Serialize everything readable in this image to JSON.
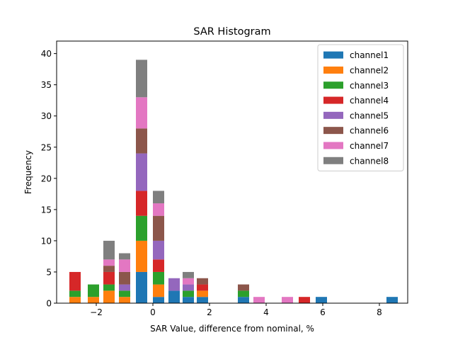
{
  "chart_data": {
    "type": "bar",
    "stacked": true,
    "title": "SAR Histogram",
    "xlabel": "SAR Value, difference from nominal, %",
    "ylabel": "Frequency",
    "xlim": [
      -3.4,
      9.0
    ],
    "ylim": [
      0,
      42
    ],
    "xticks": [
      -2,
      0,
      2,
      4,
      6,
      8
    ],
    "xtick_labels": [
      "−2",
      "0",
      "2",
      "4",
      "6",
      "8"
    ],
    "yticks": [
      0,
      5,
      10,
      15,
      20,
      25,
      30,
      35,
      40
    ],
    "ytick_labels": [
      "0",
      "5",
      "10",
      "15",
      "20",
      "25",
      "30",
      "35",
      "40"
    ],
    "bin_width": 0.5,
    "bin_centers": [
      -2.75,
      -2.1,
      -1.55,
      -1.0,
      -0.4,
      0.2,
      0.75,
      1.25,
      1.75,
      3.2,
      3.75,
      4.75,
      5.35,
      5.95,
      8.45
    ],
    "legend_position": "upper-right",
    "series": [
      {
        "name": "channel1",
        "color": "#1f77b4",
        "values": [
          0,
          0,
          0,
          0,
          5,
          1,
          2,
          1,
          1,
          1,
          0,
          0,
          0,
          1,
          1
        ]
      },
      {
        "name": "channel2",
        "color": "#ff7f0e",
        "values": [
          1,
          1,
          2,
          1,
          5,
          2,
          0,
          0,
          1,
          0,
          0,
          0,
          0,
          0,
          0
        ]
      },
      {
        "name": "channel3",
        "color": "#2ca02c",
        "values": [
          1,
          2,
          1,
          1,
          4,
          2,
          0,
          1,
          0,
          1,
          0,
          0,
          0,
          0,
          0
        ]
      },
      {
        "name": "channel4",
        "color": "#d62728",
        "values": [
          3,
          0,
          2,
          0,
          4,
          2,
          0,
          0,
          1,
          0,
          0,
          0,
          1,
          0,
          0
        ]
      },
      {
        "name": "channel5",
        "color": "#9467bd",
        "values": [
          0,
          0,
          0,
          1,
          6,
          3,
          2,
          1,
          0,
          0,
          0,
          0,
          0,
          0,
          0
        ]
      },
      {
        "name": "channel6",
        "color": "#8c564b",
        "values": [
          0,
          0,
          1,
          2,
          4,
          4,
          0,
          0,
          1,
          1,
          0,
          0,
          0,
          0,
          0
        ]
      },
      {
        "name": "channel7",
        "color": "#e377c2",
        "values": [
          0,
          0,
          1,
          2,
          5,
          2,
          0,
          1,
          0,
          0,
          1,
          1,
          0,
          0,
          0
        ]
      },
      {
        "name": "channel8",
        "color": "#7f7f7f",
        "values": [
          0,
          0,
          3,
          1,
          6,
          2,
          0,
          1,
          0,
          0,
          0,
          0,
          0,
          0,
          0
        ]
      }
    ]
  }
}
